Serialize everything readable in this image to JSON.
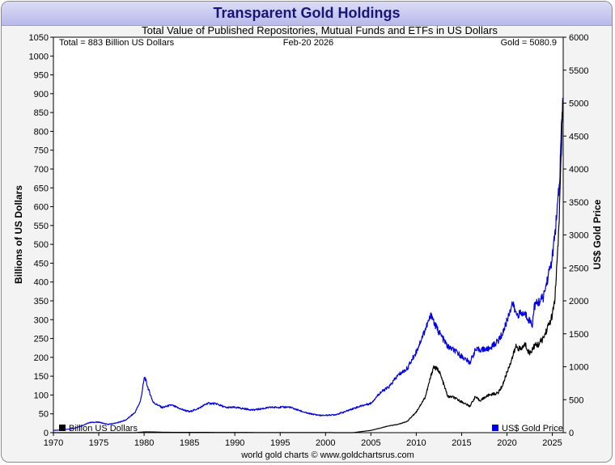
{
  "window": {
    "title": "Transparent Gold Holdings"
  },
  "header": {
    "subtitle": "Total Value of Published Repositories, Mutual Funds and ETFs in US Dollars",
    "total_label": "Total = 883 Billion US Dollars",
    "date_label": "Feb-20  2026",
    "gold_label": "Gold = 5080.9"
  },
  "footer": {
    "credit": "world gold charts © www.goldchartsrus.com"
  },
  "colors": {
    "holdings": "#000000",
    "gold": "#0000e6",
    "title": "#16167a",
    "frame": "#f3f3f3",
    "plot": "#ffffff"
  },
  "chart_data": {
    "type": "line",
    "title": "Transparent Gold Holdings",
    "subtitle": "Total Value of Published Repositories, Mutual Funds and ETFs in US Dollars",
    "xlabel": "",
    "ylabel": "Billions of US Dollars",
    "y2label": "US$ Gold Price",
    "xlim": [
      1970,
      2026.2
    ],
    "ylim": [
      0,
      1050
    ],
    "y2lim": [
      0,
      6000
    ],
    "xticks": [
      "1970",
      "1975",
      "1980",
      "1985",
      "1990",
      "1995",
      "2000",
      "2005",
      "2010",
      "2015",
      "2020",
      "2025"
    ],
    "yticks": [
      "0",
      "50",
      "100",
      "150",
      "200",
      "250",
      "300",
      "350",
      "400",
      "450",
      "500",
      "550",
      "600",
      "650",
      "700",
      "750",
      "800",
      "850",
      "900",
      "950",
      "1000",
      "1050"
    ],
    "y2ticks": [
      "0",
      "500",
      "1000",
      "1500",
      "2000",
      "2500",
      "3000",
      "3500",
      "4000",
      "4500",
      "5000",
      "5500",
      "6000"
    ],
    "grid": false,
    "legend_placement": "bottom",
    "series": [
      {
        "name": "Billion US Dollars",
        "axis": "left",
        "color": "#000000",
        "x": [
          1970,
          1979,
          1980,
          1981,
          1982,
          2003,
          2004,
          2005,
          2006,
          2007,
          2008,
          2009,
          2010,
          2011,
          2011.5,
          2011.9,
          2012.5,
          2013,
          2013.5,
          2014,
          2015,
          2015.9,
          2016.5,
          2017,
          2018,
          2019,
          2019.5,
          2020,
          2020.6,
          2021,
          2021.5,
          2022,
          2022.5,
          2023,
          2023.5,
          2024,
          2024.5,
          2025,
          2025.3,
          2025.6,
          2025.8,
          2026,
          2026.15
        ],
        "y": [
          0,
          0,
          2,
          2,
          1,
          0,
          3,
          6,
          12,
          18,
          22,
          30,
          55,
          95,
          140,
          175,
          165,
          130,
          95,
          95,
          82,
          70,
          95,
          85,
          100,
          105,
          125,
          160,
          200,
          230,
          220,
          235,
          210,
          230,
          235,
          250,
          280,
          310,
          360,
          480,
          600,
          760,
          883
        ]
      },
      {
        "name": "US$ Gold Price",
        "axis": "right",
        "color": "#0000e6",
        "x": [
          1970,
          1971,
          1972,
          1973,
          1974,
          1975,
          1976,
          1977,
          1978,
          1979,
          1979.6,
          1980.05,
          1980.5,
          1981,
          1982,
          1983,
          1984,
          1985,
          1986,
          1987,
          1988,
          1989,
          1990,
          1992,
          1994,
          1996,
          1998,
          1999.5,
          2001,
          2002,
          2003,
          2004,
          2005,
          2006,
          2007,
          2008,
          2009,
          2010,
          2011,
          2011.7,
          2012,
          2013,
          2013.5,
          2014,
          2015,
          2015.9,
          2016.5,
          2017,
          2018,
          2019,
          2019.5,
          2020,
          2020.6,
          2021,
          2022,
          2022.8,
          2023,
          2024,
          2024.5,
          2025,
          2025.5,
          2025.8,
          2026,
          2026.15
        ],
        "y": [
          35,
          41,
          58,
          97,
          154,
          160,
          125,
          148,
          193,
          306,
          480,
          850,
          650,
          460,
          380,
          420,
          360,
          317,
          368,
          446,
          437,
          381,
          383,
          344,
          384,
          388,
          294,
          260,
          271,
          310,
          364,
          410,
          445,
          604,
          695,
          872,
          972,
          1225,
          1571,
          1800,
          1650,
          1411,
          1300,
          1266,
          1160,
          1060,
          1250,
          1260,
          1268,
          1390,
          1500,
          1700,
          1970,
          1800,
          1800,
          1640,
          1920,
          2050,
          2350,
          2650,
          3300,
          3800,
          4600,
          5080.9
        ]
      }
    ]
  }
}
